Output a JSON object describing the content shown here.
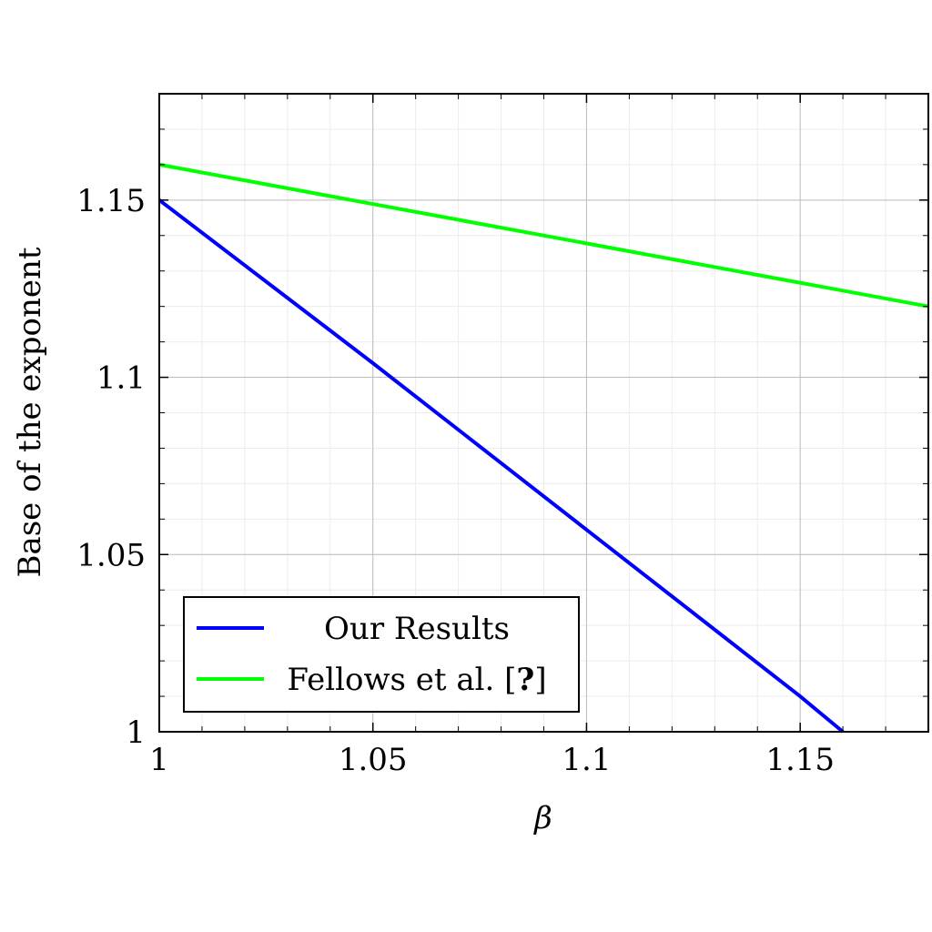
{
  "chart_data": {
    "type": "line",
    "title": "",
    "xlabel": "β",
    "ylabel": "Base of the exponent",
    "xlim": [
      1,
      1.18
    ],
    "ylim": [
      1,
      1.18
    ],
    "xticks": [
      1,
      1.05,
      1.1,
      1.15
    ],
    "xtick_labels": [
      "1",
      "1.05",
      "1.1",
      "1.15"
    ],
    "yticks": [
      1,
      1.05,
      1.1,
      1.15
    ],
    "ytick_labels": [
      "1",
      "1.05",
      "1.1",
      "1.15"
    ],
    "grid": true,
    "legend_position": "bottom-left",
    "series": [
      {
        "name": "Our Results",
        "color": "#0000ff",
        "x": [
          1,
          1.05,
          1.1,
          1.15,
          1.16
        ],
        "y": [
          1.15,
          1.104,
          1.057,
          1.01,
          1.0
        ]
      },
      {
        "name": "Fellows et al. [?]",
        "name_prefix": "Fellows et al. [",
        "name_ref": "?",
        "name_suffix": "]",
        "color": "#00ff00",
        "x": [
          1,
          1.18
        ],
        "y": [
          1.16,
          1.12
        ]
      }
    ]
  }
}
